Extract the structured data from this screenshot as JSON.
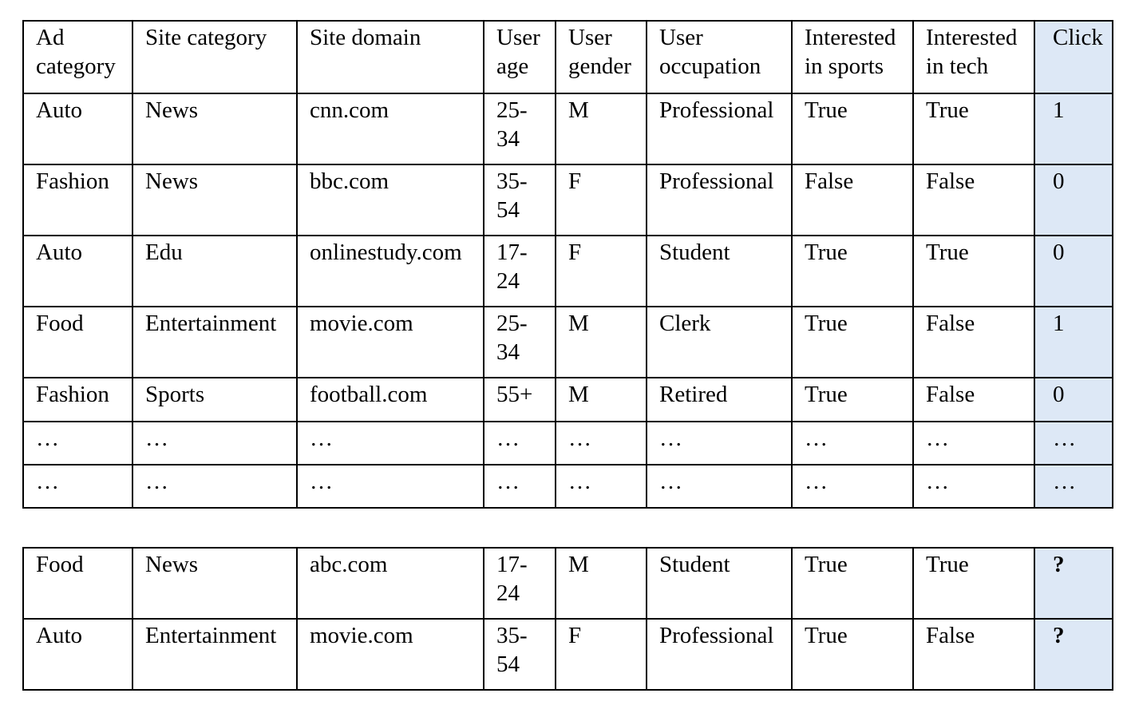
{
  "headers": [
    "Ad category",
    "Site category",
    "Site domain",
    "User age",
    "User gender",
    "User occupation",
    "Interested in sports",
    "Interested in tech",
    "Click"
  ],
  "training_rows": [
    [
      "Auto",
      "News",
      "cnn.com",
      "25-34",
      "M",
      "Professional",
      "True",
      "True",
      "1"
    ],
    [
      "Fashion",
      "News",
      "bbc.com",
      "35-54",
      "F",
      "Professional",
      "False",
      "False",
      "0"
    ],
    [
      "Auto",
      "Edu",
      "onlinestudy.com",
      "17-24",
      "F",
      "Student",
      "True",
      "True",
      "0"
    ],
    [
      "Food",
      "Entertainment",
      "movie.com",
      "25-34",
      "M",
      "Clerk",
      "True",
      "False",
      "1"
    ],
    [
      "Fashion",
      "Sports",
      "football.com",
      "55+",
      "M",
      "Retired",
      "True",
      "False",
      "0"
    ],
    [
      "…",
      "…",
      "…",
      "…",
      "…",
      "…",
      "…",
      "…",
      "…"
    ],
    [
      "…",
      "…",
      "…",
      "…",
      "…",
      "…",
      "…",
      "…",
      "…"
    ]
  ],
  "test_rows": [
    [
      "Food",
      "News",
      "abc.com",
      "17-24",
      "M",
      "Student",
      "True",
      "True",
      "?"
    ],
    [
      "Auto",
      "Entertainment",
      "movie.com",
      "35-54",
      "F",
      "Professional",
      "True",
      "False",
      "?"
    ]
  ]
}
